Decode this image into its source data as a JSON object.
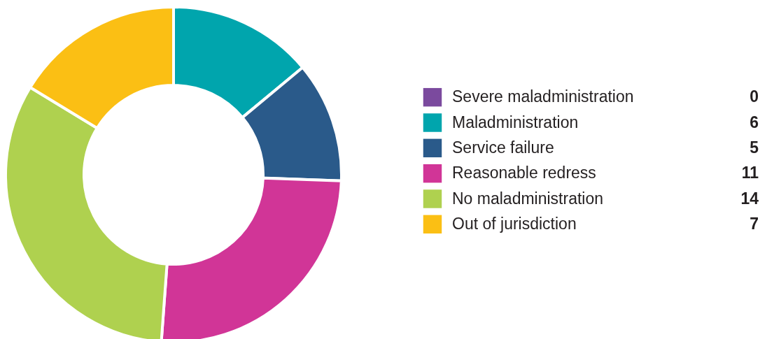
{
  "chart_data": {
    "type": "donut",
    "categories": [
      "Severe maladministration",
      "Maladministration",
      "Service failure",
      "Reasonable redress",
      "No maladministration",
      "Out of jurisdiction"
    ],
    "values": [
      0,
      6,
      5,
      11,
      14,
      7
    ],
    "colors": [
      "#7b4a9e",
      "#00a5ad",
      "#2a5a8a",
      "#d13597",
      "#afd14f",
      "#fbbf14"
    ],
    "legend": "right",
    "value_labels": [
      "0",
      "6",
      "5",
      "11",
      "14",
      "7"
    ]
  }
}
